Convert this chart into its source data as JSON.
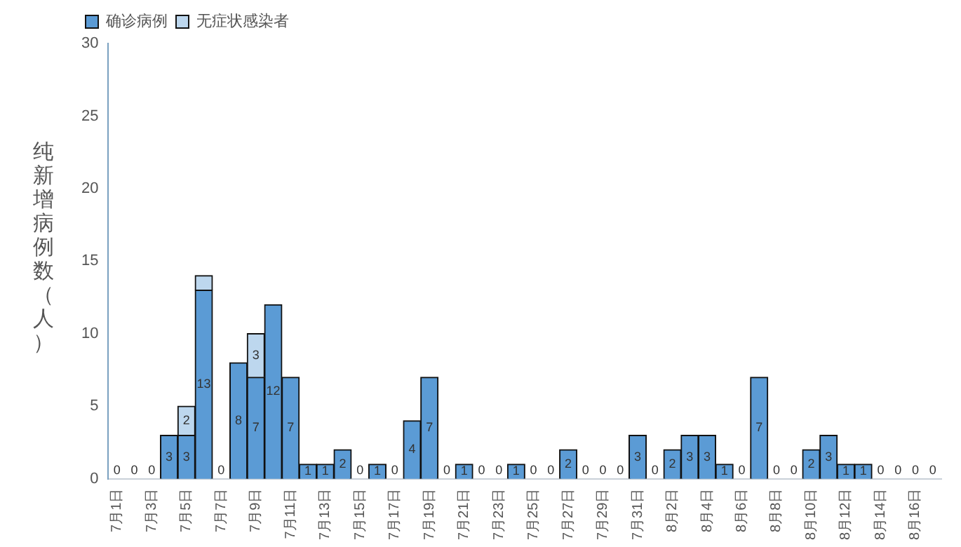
{
  "chart_data": {
    "type": "bar",
    "stacked": true,
    "ylabel": "纯新增病例数（人）",
    "categories": [
      "7月1日",
      null,
      "7月3日",
      null,
      "7月5日",
      null,
      "7月7日",
      null,
      "7月9日",
      null,
      "7月11日",
      null,
      "7月13日",
      null,
      "7月15日",
      null,
      "7月17日",
      null,
      "7月19日",
      null,
      "7月21日",
      null,
      "7月23日",
      null,
      "7月25日",
      null,
      "7月27日",
      null,
      "7月29日",
      null,
      "7月31日",
      null,
      "8月2日",
      null,
      "8月4日",
      null,
      "8月6日",
      null,
      "8月8日",
      null,
      "8月10日",
      null,
      "8月12日",
      null,
      "8月14日",
      null,
      "8月16日",
      null
    ],
    "series": [
      {
        "name": "确诊病例",
        "color": "#5b9bd5",
        "values": [
          0,
          0,
          0,
          3,
          3,
          13,
          0,
          8,
          7,
          12,
          7,
          1,
          1,
          2,
          0,
          1,
          0,
          4,
          7,
          0,
          1,
          0,
          0,
          1,
          0,
          0,
          2,
          0,
          0,
          0,
          3,
          0,
          2,
          3,
          3,
          1,
          0,
          7,
          0,
          0,
          2,
          3,
          1,
          1,
          0,
          0,
          0,
          0
        ],
        "value_labels": [
          "0",
          "0",
          "0",
          "3",
          "3",
          "13",
          "0",
          "8",
          "7",
          "12",
          "7",
          "1",
          "1",
          "2",
          "0",
          "1",
          "0",
          "4",
          "7",
          "0",
          "1",
          "0",
          "0",
          "1",
          "0",
          "0",
          "2",
          "0",
          "0",
          "0",
          "3",
          "0",
          "2",
          "3",
          "3",
          "1",
          "0",
          "7",
          "0",
          "0",
          "2",
          "3",
          "1",
          "1",
          "0",
          "0",
          "0",
          "0"
        ]
      },
      {
        "name": "无症状感染者",
        "color": "#bdd7ee",
        "values": [
          0,
          0,
          0,
          0,
          2,
          1,
          0,
          0,
          3,
          0,
          0,
          0,
          0,
          0,
          0,
          0,
          0,
          0,
          0,
          0,
          0,
          0,
          0,
          0,
          0,
          0,
          0,
          0,
          0,
          0,
          0,
          0,
          0,
          0,
          0,
          0,
          0,
          0,
          0,
          0,
          0,
          0,
          0,
          0,
          0,
          0,
          0,
          0
        ],
        "value_labels": [
          null,
          null,
          null,
          null,
          "2",
          null,
          null,
          null,
          "3",
          null,
          null,
          null,
          null,
          null,
          null,
          null,
          null,
          null,
          null,
          null,
          null,
          null,
          null,
          null,
          null,
          null,
          null,
          null,
          null,
          null,
          null,
          null,
          null,
          null,
          null,
          null,
          null,
          null,
          null,
          null,
          null,
          null,
          null,
          null,
          null,
          null,
          null,
          null
        ]
      }
    ],
    "ylim": [
      0,
      30
    ],
    "yticks": [
      0,
      5,
      10,
      15,
      20,
      25,
      30
    ],
    "grid": false,
    "legend": "top left"
  }
}
